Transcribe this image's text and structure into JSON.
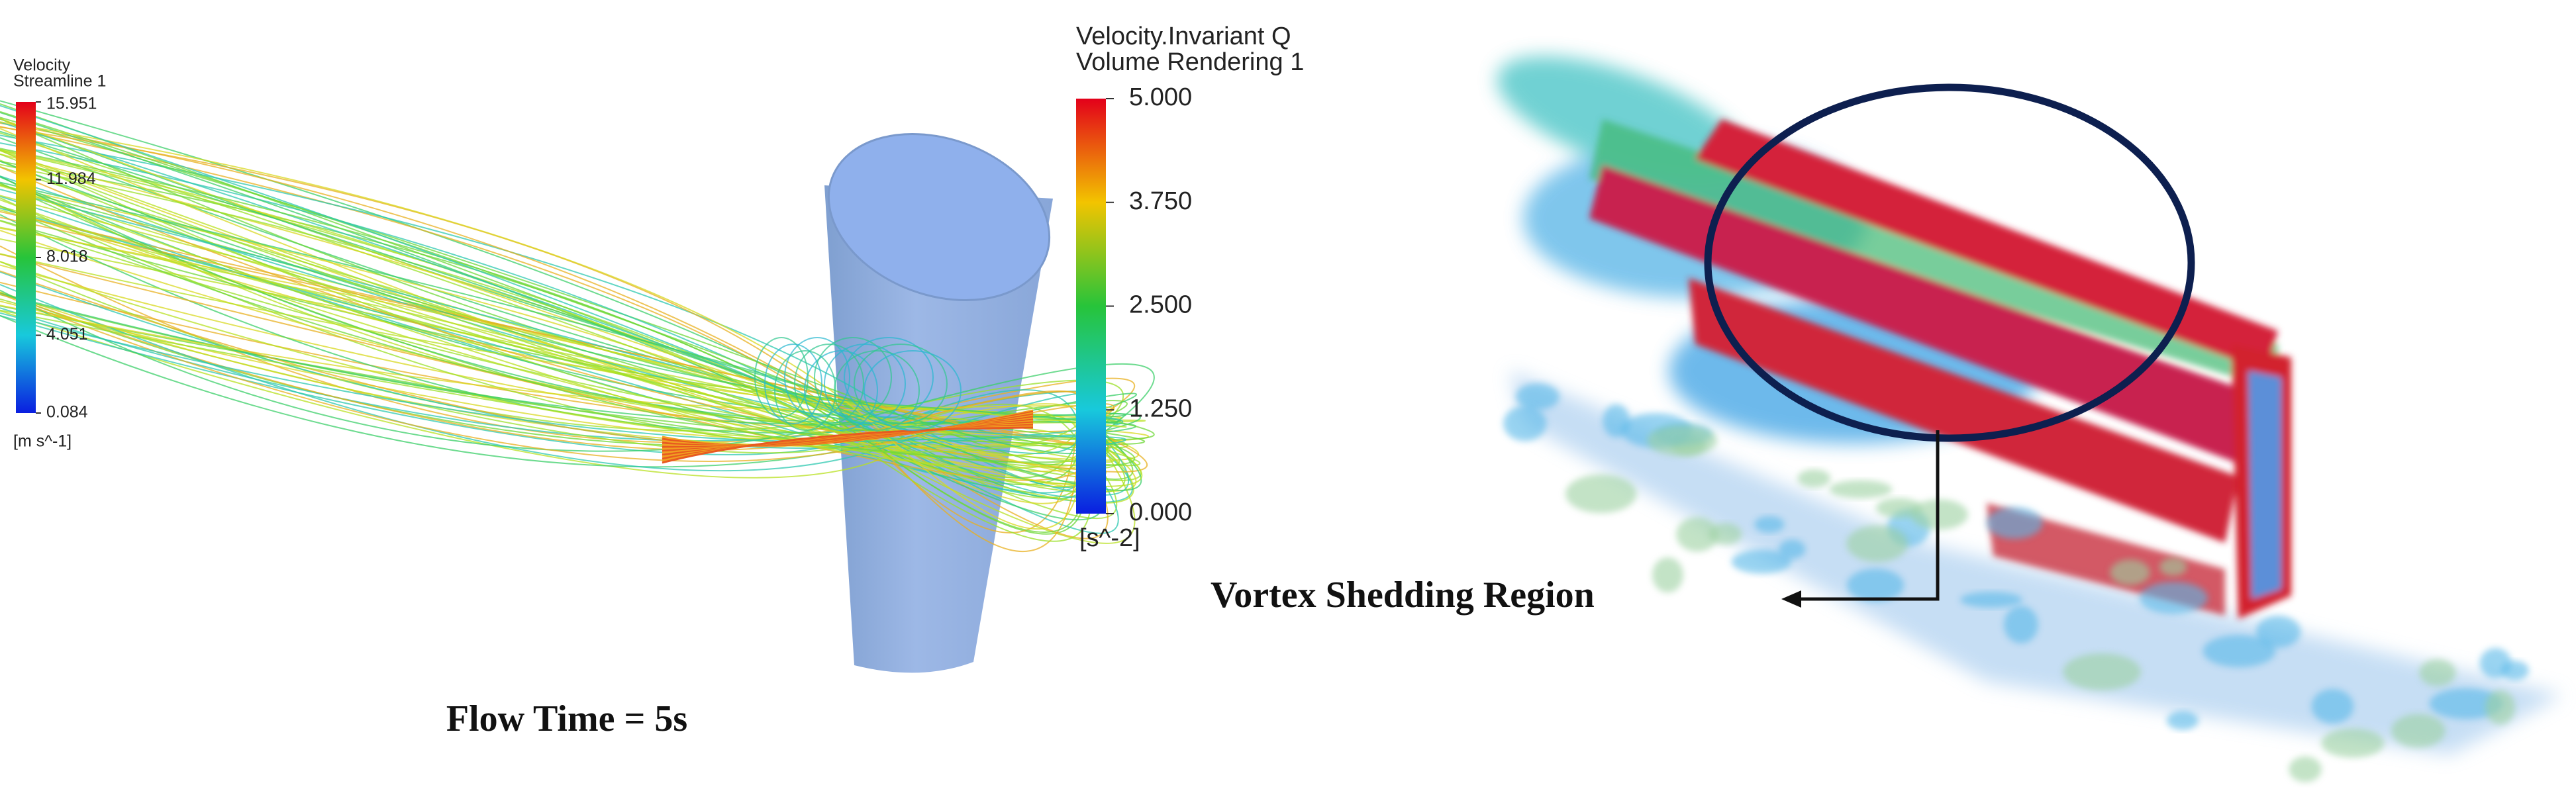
{
  "streamline_legend": {
    "title": "Velocity",
    "subtitle": "Streamline 1",
    "ticks": [
      "15.951",
      "11.984",
      "8.018",
      "4.051",
      "0.084"
    ],
    "unit": "[m s^-1]"
  },
  "volume_legend": {
    "title": "Velocity.Invariant Q",
    "subtitle": "Volume Rendering 1",
    "ticks": [
      "5.000",
      "3.750",
      "2.500",
      "1.250",
      "0.000"
    ],
    "unit": "[s^-2]"
  },
  "left_caption": "Flow Time = 5s",
  "right_annotation": "Vortex Shedding Region"
}
